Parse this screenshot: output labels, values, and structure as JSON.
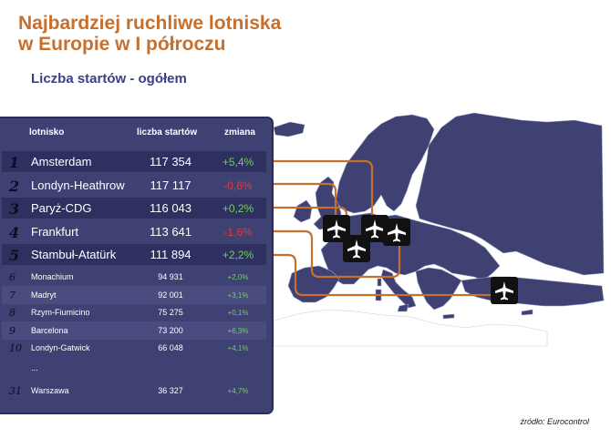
{
  "title": {
    "line1": "Najbardziej ruchliwe lotniska",
    "line2": "w Europie w I półroczu"
  },
  "subtitle": "Liczba startów - ogółem",
  "table": {
    "headers": {
      "airport": "lotnisko",
      "starts": "liczba startów",
      "change": "zmiana"
    },
    "top_rows": [
      {
        "rank": "1",
        "name": "Amsterdam",
        "starts": "117 354",
        "change": "+5,4%",
        "trend": "up"
      },
      {
        "rank": "2",
        "name": "Londyn-Heathrow",
        "starts": "117 117",
        "change": "-0,6%",
        "trend": "down"
      },
      {
        "rank": "3",
        "name": "Paryż-CDG",
        "starts": "116 043",
        "change": "+0,2%",
        "trend": "up"
      },
      {
        "rank": "4",
        "name": "Frankfurt",
        "starts": "113 641",
        "change": "-1,6%",
        "trend": "down"
      },
      {
        "rank": "5",
        "name": "Stambuł-Atatürk",
        "starts": "111 894",
        "change": "+2,2%",
        "trend": "up"
      }
    ],
    "other_rows": [
      {
        "rank": "6",
        "name": "Monachium",
        "starts": "94 931",
        "change": "+2,0%",
        "trend": "up"
      },
      {
        "rank": "7",
        "name": "Madryt",
        "starts": "92 001",
        "change": "+3,1%",
        "trend": "up"
      },
      {
        "rank": "8",
        "name": "Rzym-Fiumicino",
        "starts": "75 275",
        "change": "+0,1%",
        "trend": "up"
      },
      {
        "rank": "9",
        "name": "Barcelona",
        "starts": "73 200",
        "change": "+6,3%",
        "trend": "up"
      },
      {
        "rank": "10",
        "name": "Londyn-Gatwick",
        "starts": "66 048",
        "change": "+4,1%",
        "trend": "up"
      }
    ],
    "ellipsis": "...",
    "last_row": {
      "rank": "31",
      "name": "Warszawa",
      "starts": "36 327",
      "change": "+4,7%",
      "trend": "up"
    }
  },
  "map": {
    "airport_markers": [
      "plane-icon",
      "plane-icon",
      "plane-icon",
      "plane-icon",
      "plane-icon",
      "plane-icon"
    ],
    "colors": {
      "land": "#3f4173",
      "outline": "#9aa0c8",
      "connector": "#c5702f",
      "marker": "#111111"
    }
  },
  "source": "źródło: Eurocontrol",
  "colors": {
    "title": "#c5702f",
    "subtitle": "#3b3f84",
    "panel": "#3f4173",
    "positive": "#6fd15a",
    "negative": "#e23a3a"
  }
}
